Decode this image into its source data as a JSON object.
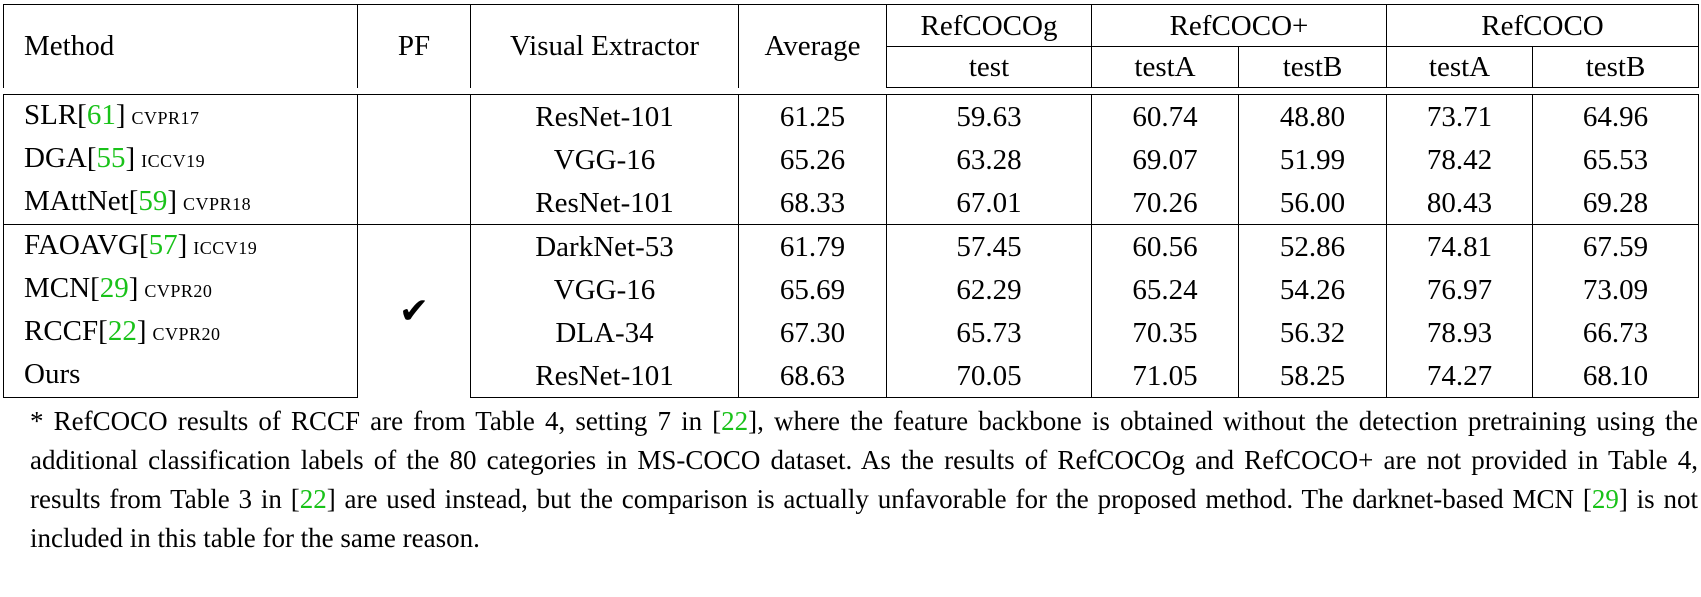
{
  "header": {
    "method": "Method",
    "pf": "PF",
    "visual_extractor": "Visual Extractor",
    "average": "Average",
    "groups": [
      {
        "name": "RefCOCOg",
        "subs": [
          "test"
        ]
      },
      {
        "name": "RefCOCO+",
        "subs": [
          "testA",
          "testB"
        ]
      },
      {
        "name": "RefCOCO",
        "subs": [
          "testA",
          "testB"
        ]
      }
    ]
  },
  "rows": [
    {
      "name": "SLR[",
      "ref": "61",
      "close": "]",
      "venue": "CVPR17",
      "pf": "",
      "extractor": "ResNet-101",
      "values": [
        "61.25",
        "59.63",
        "60.74",
        "48.80",
        "73.71",
        "64.96"
      ],
      "bold": []
    },
    {
      "name": "DGA[",
      "ref": "55",
      "close": "]",
      "venue": "ICCV19",
      "pf": "",
      "extractor": "VGG-16",
      "values": [
        "65.26",
        "63.28",
        "69.07",
        "51.99",
        "78.42",
        "65.53"
      ],
      "bold": []
    },
    {
      "name": "MAttNet[",
      "ref": "59",
      "close": "]",
      "venue": "CVPR18",
      "pf": "",
      "extractor": "ResNet-101",
      "values": [
        "68.33",
        "67.01",
        "70.26",
        "56.00",
        "80.43",
        "69.28"
      ],
      "bold": []
    },
    {
      "name": "FAOAVG[",
      "ref": "57",
      "close": "]",
      "venue": "ICCV19",
      "pf": "",
      "extractor": "DarkNet-53",
      "values": [
        "61.79",
        "57.45",
        "60.56",
        "52.86",
        "74.81",
        "67.59"
      ],
      "bold": []
    },
    {
      "name": "MCN[",
      "ref": "29",
      "close": "]",
      "venue": "CVPR20",
      "pf": "✔",
      "extractor": "VGG-16",
      "values": [
        "65.69",
        "62.29",
        "65.24",
        "54.26",
        "76.97",
        "73.09"
      ],
      "bold": [
        5
      ]
    },
    {
      "name": "RCCF[",
      "ref": "22",
      "close": "]",
      "venue": "CVPR20",
      "pf": "",
      "extractor": "DLA-34",
      "values": [
        "67.30",
        "65.73",
        "70.35",
        "56.32",
        "78.93",
        "66.73"
      ],
      "bold": [
        4
      ]
    },
    {
      "name": "Ours",
      "ref": "",
      "close": "",
      "venue": "",
      "pf": "",
      "extractor": "ResNet-101",
      "values": [
        "68.63",
        "70.05",
        "71.05",
        "58.25",
        "74.27",
        "68.10"
      ],
      "bold": [
        0,
        1,
        2,
        3
      ]
    }
  ],
  "footnote": {
    "p1": "* RefCOCO results of RCCF are from Table 4, setting 7 in [",
    "r1": "22",
    "p2": "], where the feature backbone is obtained without the detection pretraining using the additional classification labels of the 80 categories in MS-COCO dataset. As the results of RefCOCOg and RefCOCO+ are not provided in Table 4, results from Table 3 in [",
    "r2": "22",
    "p3": "] are used instead, but the comparison is actually unfavorable for the proposed method. The darknet-based MCN [",
    "r3": "29",
    "p4": "] is not included in this table for the same reason."
  }
}
